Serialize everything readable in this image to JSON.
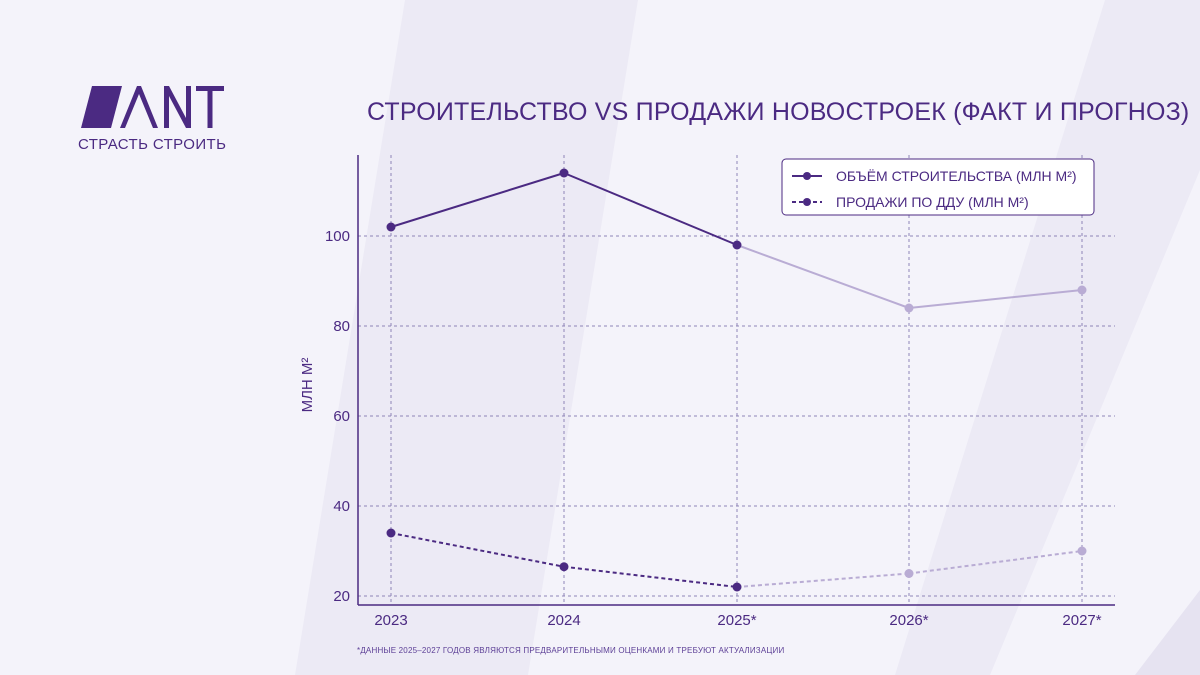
{
  "brand": {
    "logo_text": "ANT",
    "tagline": "СТРАСТЬ СТРОИТЬ"
  },
  "colors": {
    "primary": "#4b2a82",
    "forecast": "#b9acd4",
    "grid": "#8e84b8",
    "background": "#f4f3fa"
  },
  "chart_data": {
    "type": "line",
    "title": "СТРОИТЕЛЬСТВО VS ПРОДАЖИ НОВОСТРОЕК (ФАКТ И ПРОГНОЗ)",
    "xlabel": "",
    "ylabel": "МЛН М²",
    "categories": [
      "2023",
      "2024",
      "2025*",
      "2026*",
      "2027*"
    ],
    "forecast_from_index": 2,
    "ylim": [
      18,
      118
    ],
    "yticks": [
      20,
      40,
      60,
      80,
      100
    ],
    "grid": true,
    "legend_position": "top-right",
    "series": [
      {
        "name": "ОБЪЁМ СТРОИТЕЛЬСТВА (МЛН М²)",
        "style": "solid",
        "values": [
          102,
          114,
          98,
          84,
          88
        ]
      },
      {
        "name": "ПРОДАЖИ ПО ДДУ (МЛН М²)",
        "style": "dashed",
        "values": [
          34,
          26.5,
          22,
          25,
          30
        ]
      }
    ]
  },
  "footnote": "*ДАННЫЕ 2025–2027 ГОДОВ ЯВЛЯЮТСЯ ПРЕДВАРИТЕЛЬНЫМИ ОЦЕНКАМИ  И ТРЕБУЮТ АКТУАЛИЗАЦИИ"
}
